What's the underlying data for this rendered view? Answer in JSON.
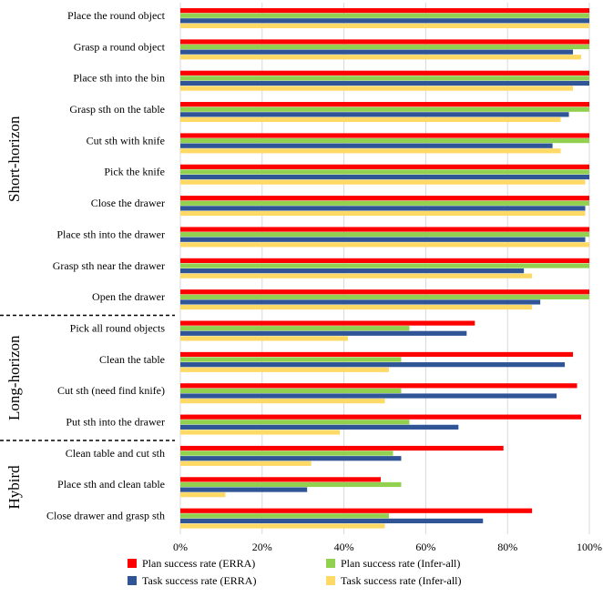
{
  "chart_data": {
    "type": "bar",
    "orientation": "horizontal",
    "categories": [
      "Place the round object",
      "Grasp a round object",
      "Place sth into the bin",
      "Grasp sth on the table",
      "Cut sth with knife",
      "Pick the knife",
      "Close the drawer",
      "Place sth into the drawer",
      "Grasp sth near the drawer",
      "Open the drawer",
      "Pick all round objects",
      "Clean the table",
      "Cut sth (need find knife)",
      "Put sth into the drawer",
      "Clean table and cut sth",
      "Place sth and clean table",
      "Close drawer and grasp sth"
    ],
    "groups": [
      {
        "name": "Short-horizon",
        "start": 0,
        "end": 9
      },
      {
        "name": "Long-horizon",
        "start": 10,
        "end": 13
      },
      {
        "name": "Hybird",
        "start": 14,
        "end": 16
      }
    ],
    "series": [
      {
        "name": "Plan success rate (ERRA)",
        "color": "#ff0000",
        "values": [
          100,
          100,
          100,
          100,
          100,
          100,
          100,
          100,
          100,
          100,
          72,
          96,
          97,
          98,
          79,
          49,
          86
        ]
      },
      {
        "name": "Plan success rate (Infer-all)",
        "color": "#92d050",
        "values": [
          100,
          100,
          100,
          100,
          100,
          100,
          100,
          100,
          100,
          100,
          56,
          54,
          54,
          56,
          52,
          54,
          51
        ]
      },
      {
        "name": "Task success rate (ERRA)",
        "color": "#2f5597",
        "values": [
          100,
          96,
          100,
          95,
          91,
          100,
          99,
          99,
          84,
          88,
          70,
          94,
          92,
          68,
          54,
          31,
          74
        ]
      },
      {
        "name": "Task success rate (Infer-all)",
        "color": "#ffd966",
        "values": [
          100,
          98,
          96,
          93,
          93,
          99,
          99,
          100,
          86,
          86,
          41,
          51,
          50,
          39,
          32,
          11,
          50
        ]
      }
    ],
    "xlim": [
      0,
      100
    ],
    "xticks": [
      "0%",
      "20%",
      "40%",
      "60%",
      "80%",
      "100%"
    ],
    "grid": "vertical",
    "legend": "bottom"
  }
}
